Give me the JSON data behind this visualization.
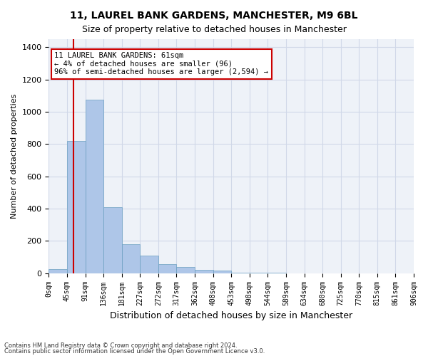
{
  "title1": "11, LAUREL BANK GARDENS, MANCHESTER, M9 6BL",
  "title2": "Size of property relative to detached houses in Manchester",
  "xlabel": "Distribution of detached houses by size in Manchester",
  "ylabel": "Number of detached properties",
  "footnote1": "Contains HM Land Registry data © Crown copyright and database right 2024.",
  "footnote2": "Contains public sector information licensed under the Open Government Licence v3.0.",
  "annotation_line1": "11 LAUREL BANK GARDENS: 61sqm",
  "annotation_line2": "← 4% of detached houses are smaller (96)",
  "annotation_line3": "96% of semi-detached houses are larger (2,594) →",
  "bar_values": [
    25,
    820,
    1075,
    410,
    180,
    110,
    55,
    40,
    20,
    15,
    5,
    2,
    1,
    0,
    0,
    0,
    0,
    0,
    0,
    0
  ],
  "bar_color": "#aec6e8",
  "bar_edge_color": "#6a9fc0",
  "bar_labels": [
    "0sqm",
    "45sqm",
    "91sqm",
    "136sqm",
    "181sqm",
    "227sqm",
    "272sqm",
    "317sqm",
    "362sqm",
    "408sqm",
    "453sqm",
    "498sqm",
    "544sqm",
    "589sqm",
    "634sqm",
    "680sqm",
    "725sqm",
    "770sqm",
    "815sqm",
    "861sqm",
    "906sqm"
  ],
  "property_line_x": 61,
  "bin_width": 45,
  "ylim": [
    0,
    1450
  ],
  "yticks": [
    0,
    200,
    400,
    600,
    800,
    1000,
    1200,
    1400
  ],
  "grid_color": "#d0d8e8",
  "background_color": "#eef2f8",
  "annotation_box_color": "#ffffff",
  "annotation_box_edge": "#cc0000",
  "red_line_color": "#cc0000"
}
